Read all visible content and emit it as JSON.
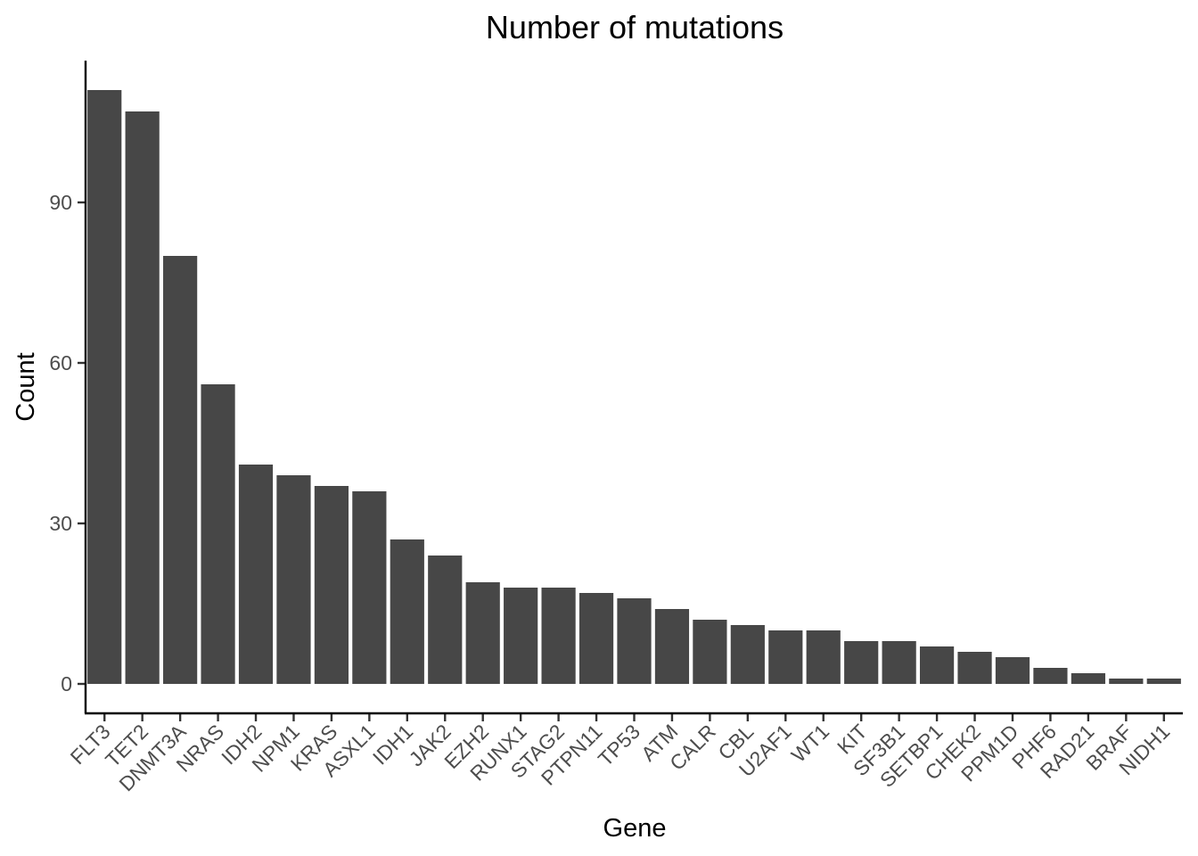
{
  "chart_data": {
    "type": "bar",
    "title": "Number of mutations",
    "xlabel": "Gene",
    "ylabel": "Count",
    "categories": [
      "FLT3",
      "TET2",
      "DNMT3A",
      "NRAS",
      "IDH2",
      "NPM1",
      "KRAS",
      "ASXL1",
      "IDH1",
      "JAK2",
      "EZH2",
      "RUNX1",
      "STAG2",
      "PTPN11",
      "TP53",
      "ATM",
      "CALR",
      "CBL",
      "U2AF1",
      "WT1",
      "KIT",
      "SF3B1",
      "SETBP1",
      "CHEK2",
      "PPM1D",
      "PHF6",
      "RAD21",
      "BRAF",
      "NIDH1"
    ],
    "values": [
      111,
      107,
      80,
      56,
      41,
      39,
      37,
      36,
      27,
      24,
      19,
      18,
      18,
      17,
      16,
      14,
      12,
      11,
      10,
      10,
      8,
      8,
      7,
      6,
      5,
      3,
      2,
      1,
      1
    ],
    "yticks": [
      0,
      30,
      60,
      90
    ],
    "ylim": [
      -5.5,
      116.5
    ],
    "grid": false,
    "bar_color": "#474747"
  }
}
